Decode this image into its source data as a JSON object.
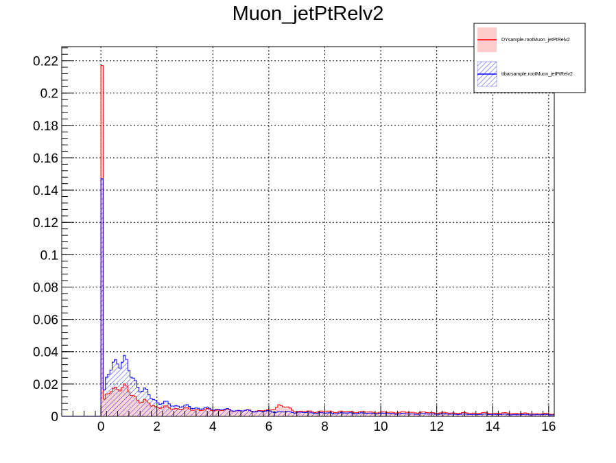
{
  "chart_data": {
    "type": "histogram",
    "title": "Muon_jetPtRelv2",
    "xlabel": "",
    "ylabel": "",
    "xlim": [
      -1.4,
      16.2
    ],
    "ylim": [
      0,
      0.22875
    ],
    "grid": true,
    "legend_position": "top-right",
    "x_ticks": [
      "0",
      "2",
      "4",
      "6",
      "8",
      "10",
      "12",
      "14",
      "16"
    ],
    "y_ticks": [
      "0",
      "0.02",
      "0.04",
      "0.06",
      "0.08",
      "0.1",
      "0.12",
      "0.14",
      "0.16",
      "0.18",
      "0.2",
      "0.22"
    ],
    "bin_width": 0.08,
    "series": [
      {
        "name": "DYsample.rootMuon_jetPtRelv2",
        "line_color": "#ff0000",
        "fill_color": "#ffcccc",
        "fill_style": "solid-light",
        "spike": {
          "x": 0.0,
          "value": 0.217
        },
        "points": [
          [
            0.08,
            0.009
          ],
          [
            0.16,
            0.012
          ],
          [
            0.24,
            0.014
          ],
          [
            0.32,
            0.016
          ],
          [
            0.4,
            0.017
          ],
          [
            0.48,
            0.018
          ],
          [
            0.56,
            0.019
          ],
          [
            0.64,
            0.019
          ],
          [
            0.72,
            0.018
          ],
          [
            0.8,
            0.017
          ],
          [
            0.88,
            0.016
          ],
          [
            0.96,
            0.015
          ],
          [
            1.04,
            0.014
          ],
          [
            1.12,
            0.013
          ],
          [
            1.2,
            0.012
          ],
          [
            1.28,
            0.011
          ],
          [
            1.36,
            0.01
          ],
          [
            1.44,
            0.009
          ],
          [
            1.52,
            0.009
          ],
          [
            1.6,
            0.008
          ],
          [
            1.68,
            0.008
          ],
          [
            1.76,
            0.007
          ],
          [
            1.84,
            0.007
          ],
          [
            1.92,
            0.006
          ],
          [
            2.0,
            0.006
          ],
          [
            2.5,
            0.005
          ],
          [
            3.0,
            0.0045
          ],
          [
            3.5,
            0.004
          ],
          [
            4.0,
            0.004
          ],
          [
            5.0,
            0.0035
          ],
          [
            6.0,
            0.0035
          ],
          [
            6.3,
            0.007
          ],
          [
            7.0,
            0.003
          ],
          [
            8.0,
            0.003
          ],
          [
            9.0,
            0.0028
          ],
          [
            10.0,
            0.0025
          ],
          [
            11.0,
            0.0025
          ],
          [
            12.0,
            0.0022
          ],
          [
            13.0,
            0.002
          ],
          [
            14.0,
            0.002
          ],
          [
            15.0,
            0.0018
          ],
          [
            16.0,
            0.0015
          ]
        ]
      },
      {
        "name": "ttbarsample.rootMuon_jetPtRelv2",
        "line_color": "#0000ff",
        "fill_color": "#0000ff",
        "fill_style": "hatched",
        "spike": {
          "x": 0.0,
          "value": 0.147
        },
        "points": [
          [
            0.08,
            0.014
          ],
          [
            0.16,
            0.021
          ],
          [
            0.24,
            0.026
          ],
          [
            0.32,
            0.03
          ],
          [
            0.4,
            0.033
          ],
          [
            0.48,
            0.035
          ],
          [
            0.56,
            0.037
          ],
          [
            0.64,
            0.036
          ],
          [
            0.72,
            0.034
          ],
          [
            0.8,
            0.032
          ],
          [
            0.88,
            0.03
          ],
          [
            0.96,
            0.028
          ],
          [
            1.04,
            0.026
          ],
          [
            1.12,
            0.024
          ],
          [
            1.2,
            0.022
          ],
          [
            1.28,
            0.02
          ],
          [
            1.36,
            0.018
          ],
          [
            1.44,
            0.016
          ],
          [
            1.52,
            0.015
          ],
          [
            1.6,
            0.014
          ],
          [
            1.68,
            0.013
          ],
          [
            1.76,
            0.012
          ],
          [
            1.84,
            0.011
          ],
          [
            1.92,
            0.01
          ],
          [
            2.0,
            0.009
          ],
          [
            2.5,
            0.007
          ],
          [
            3.0,
            0.006
          ],
          [
            3.5,
            0.005
          ],
          [
            4.0,
            0.0045
          ],
          [
            5.0,
            0.0035
          ],
          [
            6.0,
            0.003
          ],
          [
            7.0,
            0.0025
          ],
          [
            8.0,
            0.002
          ],
          [
            9.0,
            0.002
          ],
          [
            10.0,
            0.0018
          ],
          [
            11.0,
            0.0015
          ],
          [
            12.0,
            0.0015
          ],
          [
            13.0,
            0.0012
          ],
          [
            14.0,
            0.0012
          ],
          [
            15.0,
            0.001
          ],
          [
            16.0,
            0.001
          ]
        ]
      }
    ]
  }
}
